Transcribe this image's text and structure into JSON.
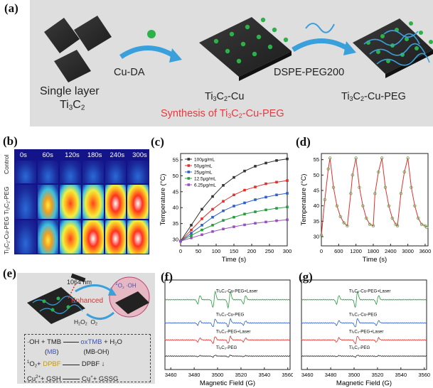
{
  "panel_a": {
    "label": "(a)",
    "step1": "Cu-DA",
    "step2": "DSPE-PEG200",
    "left_caption": "Single layer",
    "left_caption2": "Ti3C2",
    "mid_caption": "Ti3C2-Cu",
    "right_caption": "Ti3C2-Cu-PEG",
    "synthesis": "Synthesis of Ti3C2-Cu-PEG",
    "colors": {
      "bg": "#dedede",
      "arrow": "#3aa0dc",
      "dot": "#2bb34a",
      "synth": "#e8383d"
    }
  },
  "panel_b": {
    "label": "(b)",
    "times": [
      "0s",
      "60s",
      "120s",
      "180s",
      "240s",
      "300s"
    ],
    "rows": [
      "Control",
      "Ti3C2-PEG",
      "Ti3C2-Cu-PEG"
    ]
  },
  "panel_c": {
    "label": "(c)",
    "chart_data": {
      "type": "line",
      "xlabel": "Time (s)",
      "ylabel": "Temperature (°C)",
      "xlim": [
        0,
        300
      ],
      "ylim": [
        28,
        57
      ],
      "xticks": [
        0,
        50,
        100,
        150,
        200,
        250,
        300
      ],
      "yticks": [
        30,
        35,
        40,
        45,
        50,
        55
      ],
      "x": [
        0,
        30,
        60,
        90,
        120,
        150,
        180,
        210,
        240,
        270,
        300
      ],
      "series": [
        {
          "name": "100μg/mL",
          "color": "#333333",
          "values": [
            29.5,
            34.5,
            39.5,
            43.5,
            47,
            49.5,
            51.5,
            53,
            54,
            54.8,
            55.3
          ]
        },
        {
          "name": "50μg/mL",
          "color": "#e0302c",
          "values": [
            29.5,
            33,
            36.5,
            39.5,
            42,
            44,
            45.5,
            46.5,
            47.5,
            48,
            48.5
          ]
        },
        {
          "name": "25μg/mL",
          "color": "#2f5fc4",
          "values": [
            29.5,
            32,
            34.5,
            37,
            39,
            40.5,
            41.5,
            42.5,
            43.3,
            44,
            44.5
          ]
        },
        {
          "name": "12.5μg/mL",
          "color": "#2a9a3c",
          "values": [
            29.5,
            31.3,
            33,
            34.5,
            36,
            37,
            38,
            38.7,
            39.3,
            39.8,
            40.2
          ]
        },
        {
          "name": "6.25μg/mL",
          "color": "#9a4fc0",
          "values": [
            29.5,
            30.5,
            31.5,
            32.5,
            33.3,
            34,
            34.6,
            35.1,
            35.5,
            35.9,
            36.2
          ]
        }
      ]
    }
  },
  "panel_d": {
    "label": "(d)",
    "chart_data": {
      "type": "line",
      "xlabel": "Time (s)",
      "ylabel": "Temperature (°C)",
      "xlim": [
        0,
        3700
      ],
      "ylim": [
        27,
        57
      ],
      "xticks": [
        0,
        600,
        1200,
        1800,
        2400,
        3000,
        3600
      ],
      "yticks": [
        30,
        35,
        40,
        45,
        50,
        55
      ],
      "x": [
        0,
        120,
        240,
        300,
        420,
        540,
        660,
        780,
        900,
        1020,
        1080,
        1200,
        1320,
        1440,
        1560,
        1680,
        1800,
        1860,
        1980,
        2100,
        2220,
        2340,
        2460,
        2580,
        2640,
        2760,
        2880,
        3000,
        3120,
        3240,
        3360,
        3480,
        3600,
        3660
      ],
      "values": [
        30.5,
        42,
        52,
        55.5,
        46,
        40,
        36.5,
        34.5,
        33.5,
        44,
        50,
        55.5,
        46,
        40,
        36,
        34,
        33.5,
        44,
        51,
        55.5,
        46,
        40,
        36,
        34,
        33.5,
        44,
        51,
        55.5,
        46,
        40,
        36,
        34,
        33.5,
        33
      ]
    }
  },
  "panel_e": {
    "label": "(e)",
    "laser": "1064 nm",
    "enhanced": "Enhanced",
    "reagents": "H2O2  O2",
    "oh_radical": "·OH",
    "singlet": "1O2",
    "reactions": [
      {
        "left": "·OH + TMB",
        "right": "oxTMB + H2O"
      },
      {
        "left": "(MB)",
        "right": "(MB-OH)"
      },
      {
        "left": "1O2 + DPBF",
        "right": "DPBF ↓"
      },
      {
        "left": "Cu2+ + GSH",
        "right": "Cu+ + GSSG"
      }
    ]
  },
  "panel_f": {
    "label": "(f)",
    "chart_data": {
      "type": "line",
      "xlabel": "Magnetic Field (G)",
      "xticks": [
        3460,
        3480,
        3500,
        3520,
        3540,
        3560
      ],
      "xlim": [
        3455,
        3562
      ],
      "traces": [
        {
          "name": "Ti3C2-Cu-PEG+Laser",
          "color": "#2a9a3c",
          "baseline": 0.78,
          "amp": 1.0
        },
        {
          "name": "Ti3C2-Cu-PEG",
          "color": "#2f5fc4",
          "baseline": 0.52,
          "amp": 0.5
        },
        {
          "name": "Ti3C2-PEG+Laser",
          "color": "#e0302c",
          "baseline": 0.33,
          "amp": 0.45
        },
        {
          "name": "Ti3C2-PEG",
          "color": "#333333",
          "baseline": 0.15,
          "amp": 0.12
        }
      ],
      "peaks": [
        3484,
        3497,
        3510,
        3523
      ]
    }
  },
  "panel_g": {
    "label": "(g)",
    "chart_data": {
      "type": "line",
      "xlabel": "Magnetic Field (G)",
      "xticks": [
        3460,
        3480,
        3500,
        3520,
        3540,
        3560
      ],
      "xlim": [
        3455,
        3562
      ],
      "traces": [
        {
          "name": "Ti3C2-Cu-PEG+Laser",
          "color": "#2a9a3c",
          "baseline": 0.78,
          "amp": 1.0
        },
        {
          "name": "Ti3C2-Cu-PEG",
          "color": "#2f5fc4",
          "baseline": 0.52,
          "amp": 0.55
        },
        {
          "name": "Ti3C2-PEG+Laser",
          "color": "#e0302c",
          "baseline": 0.33,
          "amp": 0.5
        },
        {
          "name": "Ti3C2-PEG",
          "color": "#333333",
          "baseline": 0.15,
          "amp": 0.12
        }
      ],
      "peaks": [
        3486,
        3502,
        3520
      ]
    }
  }
}
